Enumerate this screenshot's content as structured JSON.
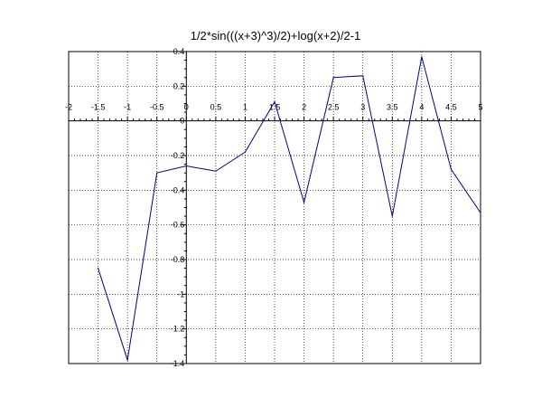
{
  "chart_data": {
    "type": "line",
    "title": "1/2*sin(((x+3)^3)/2)+log(x+2)/2-1",
    "xlabel": "",
    "ylabel": "",
    "xlim": [
      -2,
      5
    ],
    "ylim": [
      -1.4,
      0.4
    ],
    "grid": true,
    "xticks": [
      -2,
      -1.5,
      -1,
      -0.5,
      0,
      0.5,
      1,
      1.5,
      2,
      2.5,
      3,
      3.5,
      4,
      4.5,
      5
    ],
    "xtick_labels": [
      "-2",
      "-1.5",
      "-1",
      "-0.5",
      "0",
      "0.5",
      "1",
      "1.5",
      "2",
      "2.5",
      "3",
      "3.5",
      "4",
      "4.5",
      "5"
    ],
    "yticks": [
      0.4,
      0.2,
      0,
      -0.2,
      -0.4,
      -0.6,
      -0.8,
      -1,
      -1.2,
      -1.4
    ],
    "ytick_labels": [
      "0.4",
      "0.2",
      "0",
      "-0.2",
      "-0.4",
      "-0.6",
      "-0.8",
      "-1",
      "-1.2",
      "-1.4"
    ],
    "series": [
      {
        "color": "#00008b",
        "x": [
          -1.5,
          -1,
          -0.5,
          0,
          0.5,
          1,
          1.5,
          2,
          2.5,
          3,
          3.5,
          4,
          4.5,
          5
        ],
        "y": [
          -0.85,
          -1.38,
          -0.3,
          -0.26,
          -0.29,
          -0.18,
          0.11,
          -0.47,
          0.25,
          0.26,
          -0.55,
          0.37,
          -0.28,
          -0.53
        ]
      }
    ]
  }
}
